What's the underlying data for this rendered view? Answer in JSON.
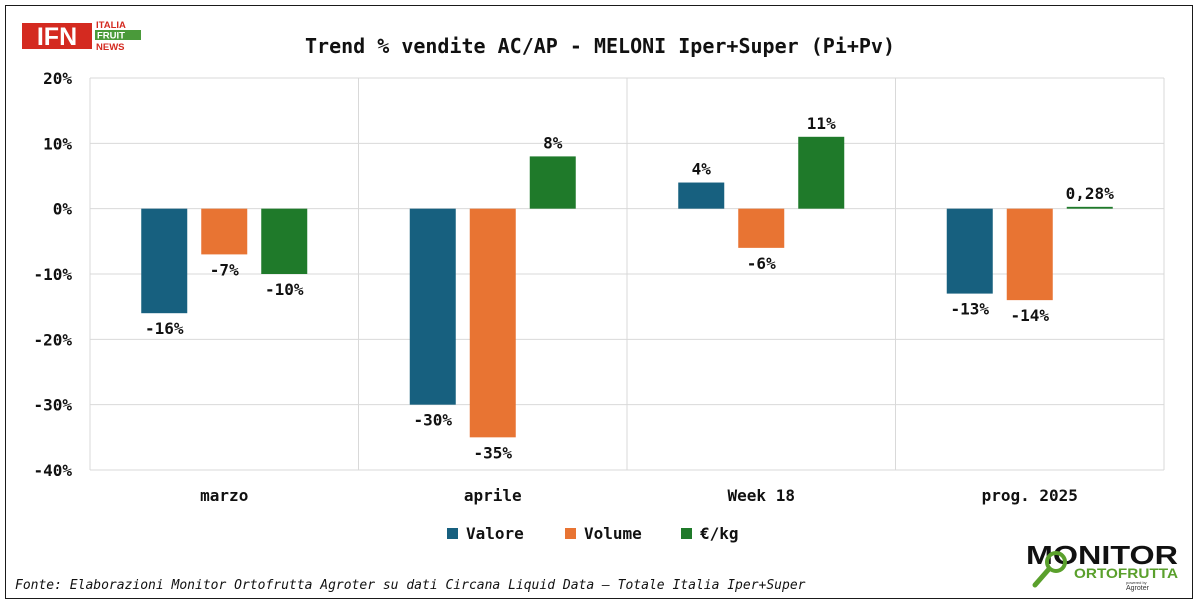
{
  "branding": {
    "ifn": {
      "badge": "IFN",
      "line1": "ITALIA",
      "line2": "FRUIT",
      "line3": "NEWS",
      "red": "#d42a20",
      "green": "#4a9a3a"
    },
    "monitor": {
      "word1": "MONITOR",
      "word2": "ORTOFRUTTA",
      "powered": "powered by",
      "brand": "Agroter",
      "green": "#5aa02c"
    }
  },
  "source_note": "Fonte: Elaborazioni Monitor Ortofrutta Agroter su dati Circana Liquid Data – Totale Italia Iper+Super",
  "chart_data": {
    "type": "bar",
    "title": "Trend % vendite AC/AP - MELONI Iper+Super (Pi+Pv)",
    "xlabel": "",
    "ylabel": "",
    "ylim": [
      -40,
      20
    ],
    "yticks": [
      20,
      10,
      0,
      -10,
      -20,
      -30,
      -40
    ],
    "ytick_labels": [
      "20%",
      "10%",
      "0%",
      "-10%",
      "-20%",
      "-30%",
      "-40%"
    ],
    "grid": true,
    "legend_position": "bottom",
    "categories": [
      "marzo",
      "aprile",
      "Week 18",
      "prog. 2025"
    ],
    "series": [
      {
        "name": "Valore",
        "color": "#17607f",
        "values": [
          -16,
          -30,
          4,
          -13
        ],
        "labels": [
          "-16%",
          "-30%",
          "4%",
          "-13%"
        ]
      },
      {
        "name": "Volume",
        "color": "#e87433",
        "values": [
          -7,
          -35,
          -6,
          -14
        ],
        "labels": [
          "-7%",
          "-35%",
          "-6%",
          "-14%"
        ]
      },
      {
        "name": "€/kg",
        "color": "#1f7a2a",
        "values": [
          -10,
          8,
          11,
          0.28
        ],
        "labels": [
          "-10%",
          "8%",
          "11%",
          "0,28%"
        ]
      }
    ]
  }
}
